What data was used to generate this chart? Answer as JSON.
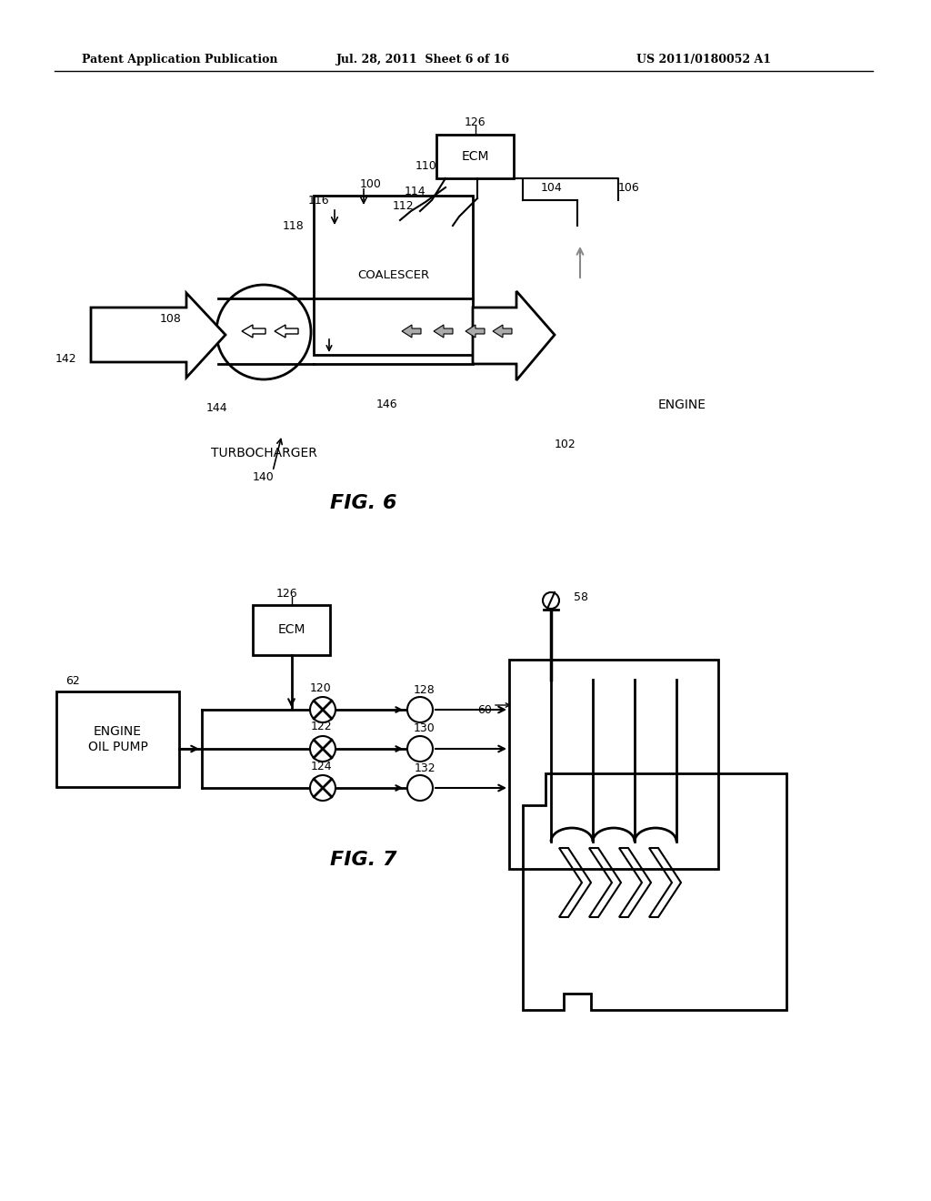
{
  "bg_color": "#ffffff",
  "header_left": "Patent Application Publication",
  "header_center": "Jul. 28, 2011  Sheet 6 of 16",
  "header_right": "US 2011/0180052 A1",
  "fig6_title": "FIG. 6",
  "fig7_title": "FIG. 7"
}
